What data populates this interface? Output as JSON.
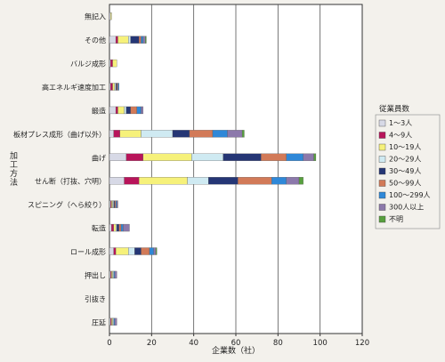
{
  "chart_data": {
    "type": "bar",
    "orientation": "horizontal",
    "stacked": true,
    "xlabel": "企業数（社）",
    "ylabel": "加工方法",
    "xlim": [
      0,
      120
    ],
    "xticks": [
      0,
      20,
      40,
      60,
      80,
      100,
      120
    ],
    "grid": true,
    "legend_title": "従業員数",
    "legend_position": "right",
    "categories": [
      "無記入",
      "その他",
      "バルジ成形",
      "高エネルギ速度加工",
      "鍛造",
      "板材プレス成形（曲げ以外）",
      "曲げ",
      "せん断（打抜、穴明）",
      "スピニング（へら絞り）",
      "転造",
      "ロール成形",
      "押出し",
      "引抜き",
      "圧延"
    ],
    "series": [
      {
        "name": "1～3人",
        "color": "#d7d9e6",
        "values": [
          0.5,
          3,
          0.5,
          0.5,
          3,
          2,
          8,
          7,
          0.5,
          1,
          2,
          0.5,
          0,
          0.5
        ]
      },
      {
        "name": "4～9人",
        "color": "#b8145a",
        "values": [
          0,
          1,
          1,
          1,
          1,
          3,
          8,
          7,
          0.5,
          1,
          1,
          0.5,
          0,
          0.5
        ]
      },
      {
        "name": "10～19人",
        "color": "#f6f17a",
        "values": [
          0.5,
          5,
          2,
          1,
          3,
          10,
          23,
          23,
          0.5,
          1,
          6,
          0.5,
          0,
          0.5
        ]
      },
      {
        "name": "20～29人",
        "color": "#cfeaf2",
        "values": [
          0,
          1,
          0,
          0.5,
          1,
          15,
          15,
          10,
          0.5,
          0.5,
          3,
          0.5,
          0,
          0.5
        ]
      },
      {
        "name": "30～49人",
        "color": "#253675",
        "values": [
          0,
          4,
          0,
          0.5,
          2,
          8,
          18,
          14,
          0.5,
          1,
          3,
          0,
          0,
          0
        ]
      },
      {
        "name": "50～99人",
        "color": "#d27a58",
        "values": [
          0,
          1,
          0,
          0.5,
          3,
          11,
          12,
          16,
          0.5,
          1,
          4,
          0,
          0,
          0
        ]
      },
      {
        "name": "100～299人",
        "color": "#2f88d8",
        "values": [
          0,
          1,
          0,
          0.5,
          2,
          7,
          8,
          7,
          0.5,
          1,
          2,
          0.5,
          0,
          0.5
        ]
      },
      {
        "name": "300人以上",
        "color": "#8c79ab",
        "values": [
          0,
          1,
          0,
          0,
          1,
          7,
          5,
          6,
          0.5,
          3,
          1,
          1,
          0,
          1
        ]
      },
      {
        "name": "不明",
        "color": "#58a03e",
        "values": [
          0,
          0.5,
          0,
          0,
          0,
          1,
          1,
          2,
          0,
          0,
          0.5,
          0,
          0,
          0
        ]
      }
    ]
  }
}
